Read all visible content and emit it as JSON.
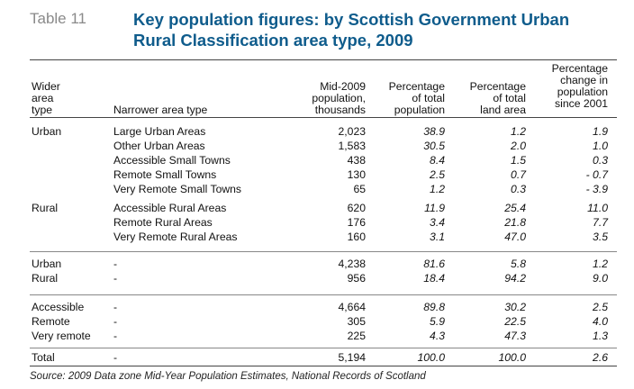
{
  "table_label": "Table 11",
  "title_line1": "Key population figures: by Scottish Government Urban",
  "title_line2": "Rural Classification area type, 2009",
  "headers": {
    "wider": [
      "Wider",
      "area",
      "type"
    ],
    "narrower": "Narrower area type",
    "pop": [
      "Mid-2009",
      "population,",
      "thousands"
    ],
    "pct_pop": [
      "Percentage",
      "of total",
      "population"
    ],
    "pct_land": [
      "Percentage",
      "of total",
      "land area"
    ],
    "pct_change": [
      "Percentage",
      "change in",
      "population",
      "since 2001"
    ]
  },
  "groups": [
    {
      "rows": [
        {
          "wider": "Urban",
          "narrower": "Large Urban Areas",
          "pop": "2,023",
          "pct_pop": "38.9",
          "land": "1.2",
          "change": "1.9"
        },
        {
          "wider": "",
          "narrower": "Other Urban Areas",
          "pop": "1,583",
          "pct_pop": "30.5",
          "land": "2.0",
          "change": "1.0"
        },
        {
          "wider": "",
          "narrower": "Accessible Small Towns",
          "pop": "438",
          "pct_pop": "8.4",
          "land": "1.5",
          "change": "0.3"
        },
        {
          "wider": "",
          "narrower": "Remote Small Towns",
          "pop": "130",
          "pct_pop": "2.5",
          "land": "0.7",
          "change": "- 0.7"
        },
        {
          "wider": "",
          "narrower": "Very Remote Small Towns",
          "pop": "65",
          "pct_pop": "1.2",
          "land": "0.3",
          "change": "- 3.9"
        }
      ]
    },
    {
      "rows": [
        {
          "wider": "Rural",
          "narrower": "Accessible Rural Areas",
          "pop": "620",
          "pct_pop": "11.9",
          "land": "25.4",
          "change": "11.0"
        },
        {
          "wider": "",
          "narrower": "Remote Rural Areas",
          "pop": "176",
          "pct_pop": "3.4",
          "land": "21.8",
          "change": "7.7"
        },
        {
          "wider": "",
          "narrower": "Very Remote Rural Areas",
          "pop": "160",
          "pct_pop": "3.1",
          "land": "47.0",
          "change": "3.5"
        }
      ]
    },
    {
      "rows": [
        {
          "wider": "Urban",
          "narrower": "-",
          "pop": "4,238",
          "pct_pop": "81.6",
          "land": "5.8",
          "change": "1.2"
        },
        {
          "wider": "Rural",
          "narrower": "-",
          "pop": "956",
          "pct_pop": "18.4",
          "land": "94.2",
          "change": "9.0"
        }
      ]
    },
    {
      "rows": [
        {
          "wider": "Accessible",
          "narrower": "-",
          "pop": "4,664",
          "pct_pop": "89.8",
          "land": "30.2",
          "change": "2.5"
        },
        {
          "wider": "Remote",
          "narrower": "-",
          "pop": "305",
          "pct_pop": "5.9",
          "land": "22.5",
          "change": "4.0"
        },
        {
          "wider": "Very remote",
          "narrower": "-",
          "pop": "225",
          "pct_pop": "4.3",
          "land": "47.3",
          "change": "1.3"
        }
      ]
    },
    {
      "rows": [
        {
          "wider": "Total",
          "narrower": "-",
          "pop": "5,194",
          "pct_pop": "100.0",
          "land": "100.0",
          "change": "2.6"
        }
      ]
    }
  ],
  "source": "Source: 2009 Data zone Mid-Year Population Estimates, National Records of Scotland"
}
